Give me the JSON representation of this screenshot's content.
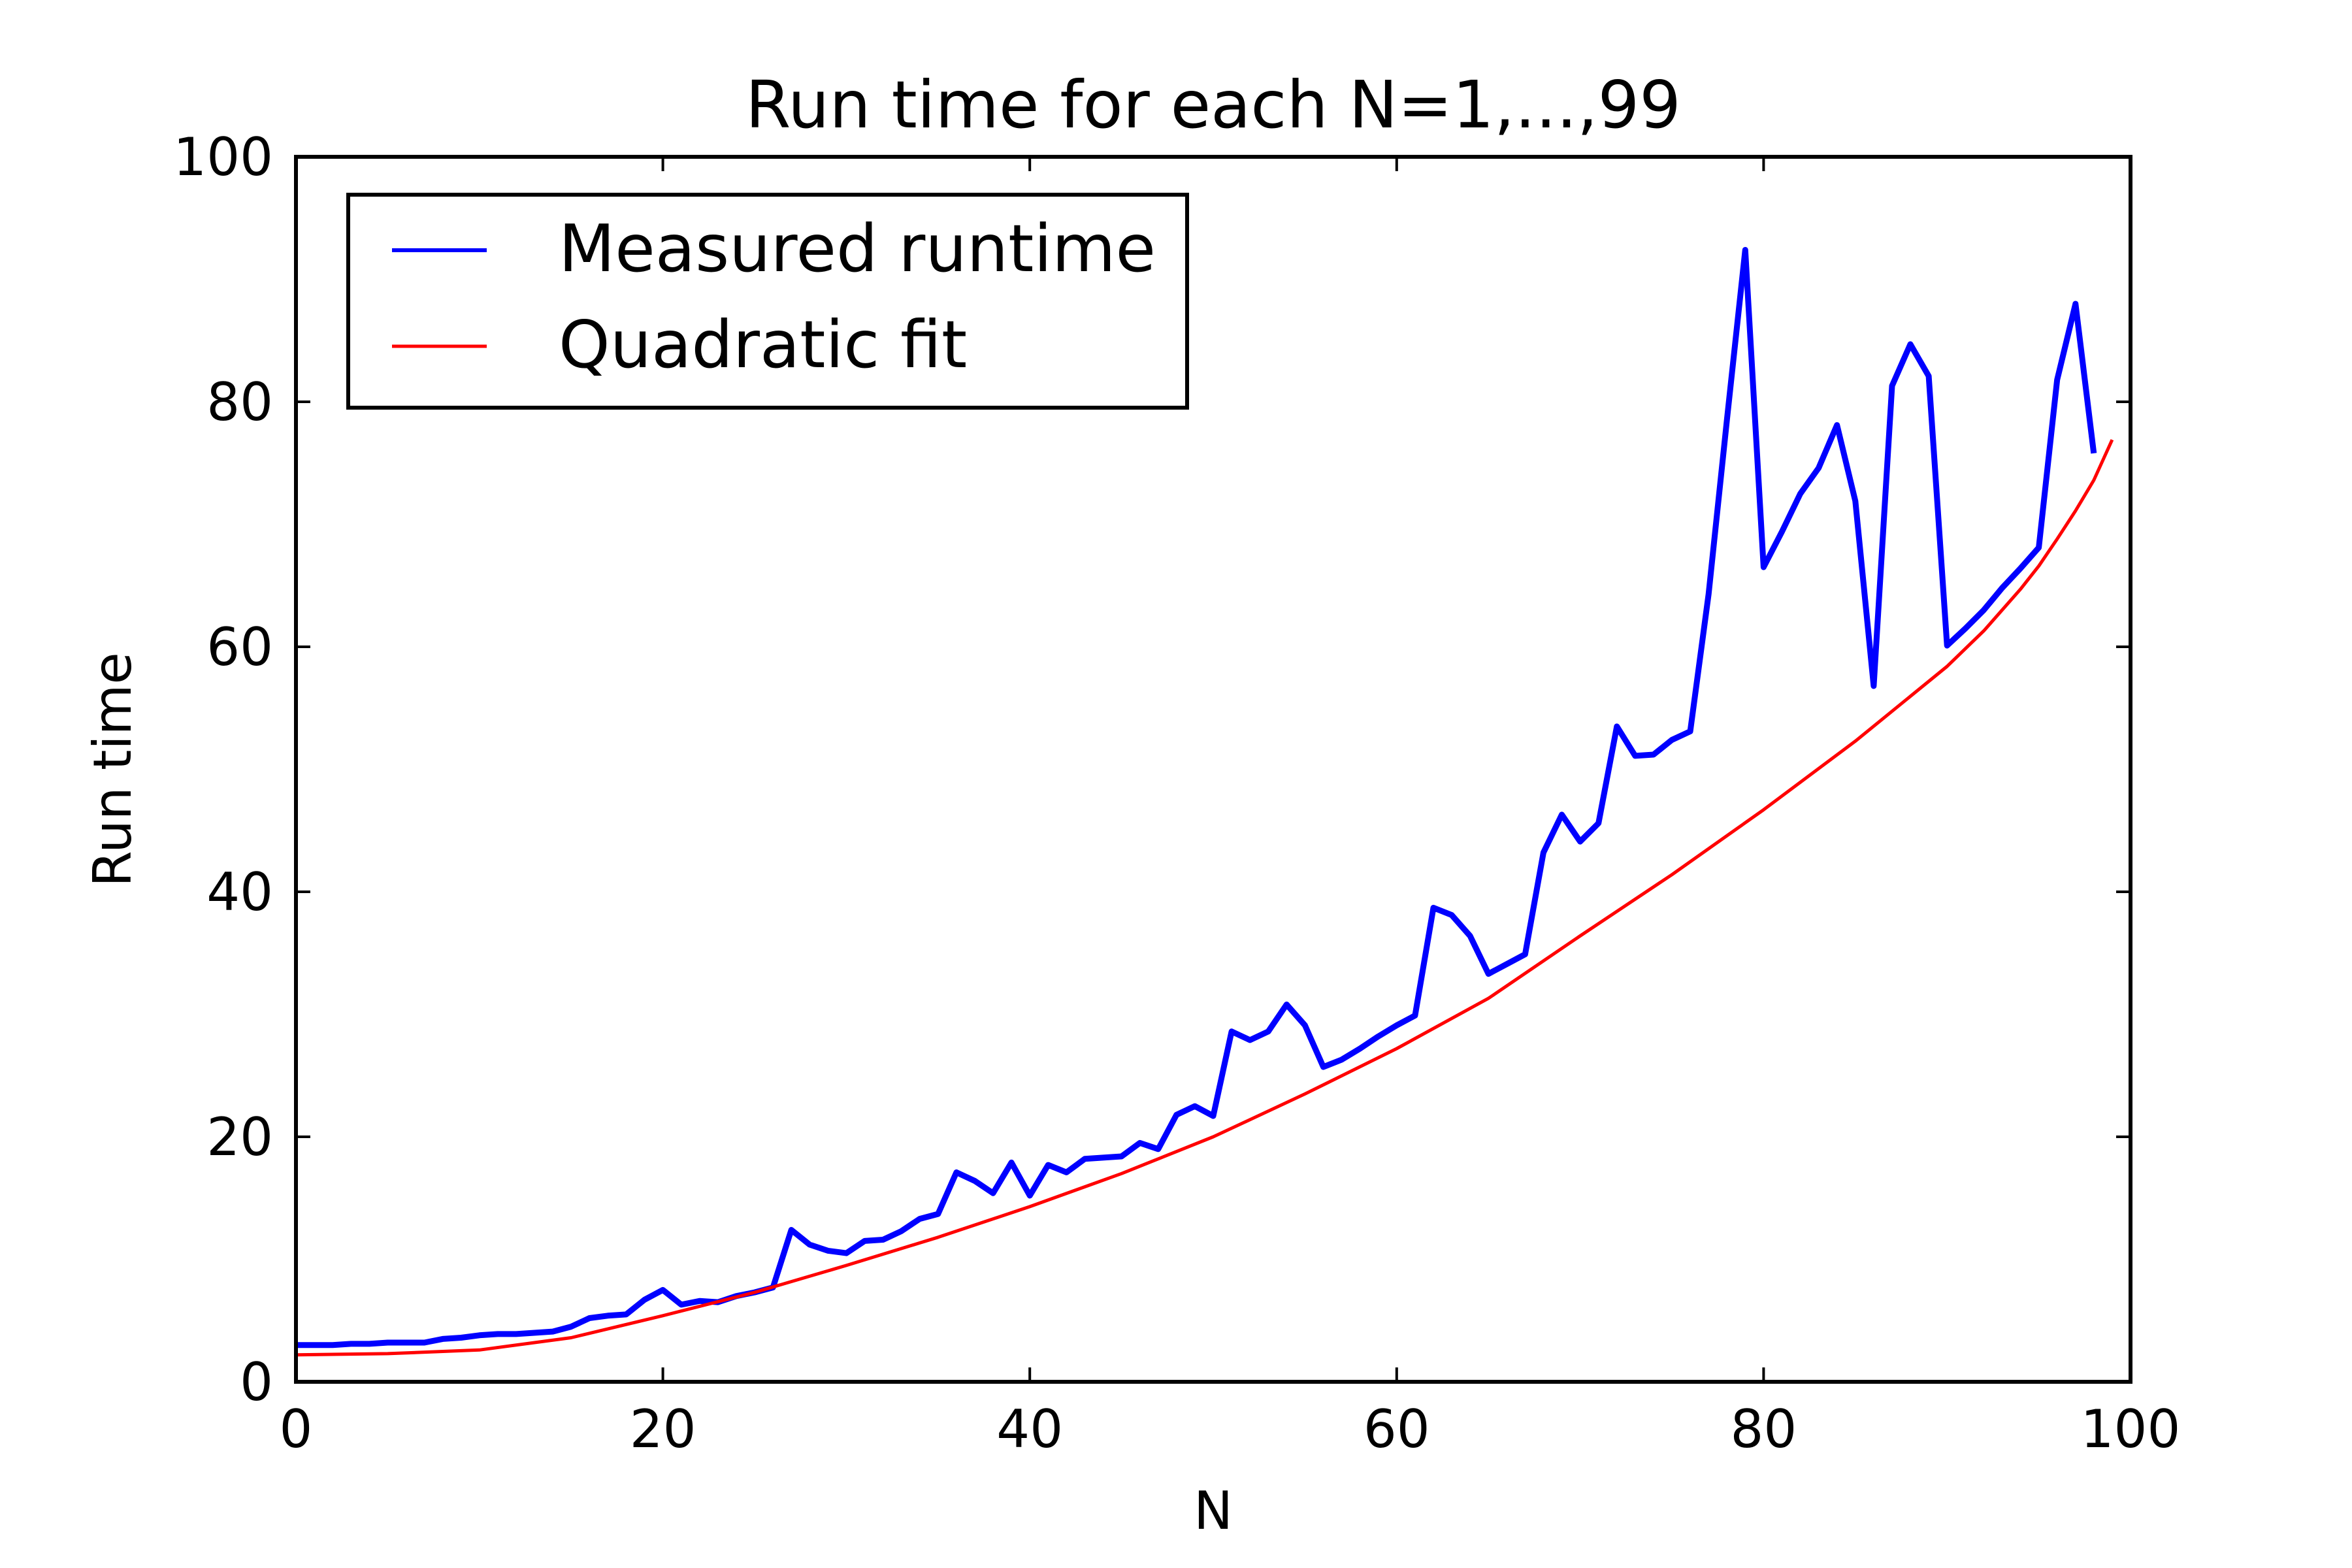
{
  "chart_data": {
    "type": "line",
    "title": "Run time for each N=1,...,99",
    "xlabel": "N",
    "ylabel": "Run time",
    "xlim": [
      0,
      100
    ],
    "ylim": [
      0,
      100
    ],
    "xticks": [
      0,
      20,
      40,
      60,
      80,
      100
    ],
    "yticks": [
      0,
      20,
      40,
      60,
      80,
      100
    ],
    "xtick_labels": [
      "0",
      "20",
      "40",
      "60",
      "80",
      "100"
    ],
    "ytick_labels": [
      "0",
      "20",
      "40",
      "60",
      "80",
      "100"
    ],
    "grid": false,
    "legend_position": "top-left",
    "series": [
      {
        "name": "Measured runtime",
        "color": "#0000ff",
        "x": [
          0,
          1,
          2,
          3,
          4,
          5,
          6,
          7,
          8,
          9,
          10,
          11,
          12,
          13,
          14,
          15,
          16,
          17,
          18,
          19,
          20,
          21,
          22,
          23,
          24,
          25,
          26,
          27,
          28,
          29,
          30,
          31,
          32,
          33,
          34,
          35,
          36,
          37,
          38,
          39,
          40,
          41,
          42,
          43,
          44,
          45,
          46,
          47,
          48,
          49,
          50,
          51,
          52,
          53,
          54,
          55,
          56,
          57,
          58,
          59,
          60,
          61,
          62,
          63,
          64,
          65,
          66,
          67,
          68,
          69,
          70,
          71,
          72,
          73,
          74,
          75,
          76,
          77,
          78,
          79,
          80,
          81,
          82,
          83,
          84,
          85,
          86,
          87,
          88,
          89,
          90,
          91,
          92,
          93,
          94,
          95,
          96,
          97,
          98
        ],
        "y": [
          3.0,
          3.0,
          3.0,
          3.1,
          3.1,
          3.2,
          3.2,
          3.2,
          3.5,
          3.6,
          3.8,
          3.9,
          3.9,
          4.0,
          4.1,
          4.5,
          5.2,
          5.4,
          5.5,
          6.7,
          7.5,
          6.3,
          6.6,
          6.5,
          7.0,
          7.3,
          7.7,
          12.4,
          11.2,
          10.7,
          10.5,
          11.5,
          11.6,
          12.3,
          13.3,
          13.7,
          17.1,
          16.4,
          15.4,
          17.9,
          15.2,
          17.7,
          17.1,
          18.2,
          18.3,
          18.4,
          19.5,
          19.0,
          21.8,
          22.5,
          21.7,
          28.6,
          27.9,
          28.6,
          30.8,
          29.1,
          25.7,
          26.3,
          27.2,
          28.2,
          29.1,
          29.9,
          38.7,
          38.1,
          36.4,
          33.3,
          34.1,
          34.9,
          43.2,
          46.3,
          44.1,
          45.6,
          53.5,
          51.1,
          51.2,
          52.4,
          53.1,
          64.3,
          78.5,
          92.4,
          66.5,
          69.4,
          72.5,
          74.6,
          78.1,
          71.9,
          56.8,
          81.3,
          84.7,
          82.1,
          60.1,
          61.5,
          63.0,
          64.8,
          66.4,
          68.1,
          81.8,
          88.0,
          75.8
        ]
      },
      {
        "name": "Quadratic fit",
        "color": "#ff0000",
        "x": [
          0,
          5,
          10,
          15,
          20,
          25,
          30,
          35,
          40,
          45,
          50,
          55,
          60,
          65,
          70,
          75,
          80,
          85,
          90,
          92,
          94,
          95,
          96,
          97,
          98,
          99
        ],
        "y": [
          2.2,
          2.3,
          2.6,
          3.6,
          5.4,
          7.3,
          9.5,
          11.8,
          14.3,
          17.0,
          20.0,
          23.5,
          27.2,
          31.3,
          36.4,
          41.4,
          46.7,
          52.3,
          58.4,
          61.3,
          64.7,
          66.6,
          68.8,
          71.1,
          73.6,
          76.9
        ]
      }
    ]
  }
}
